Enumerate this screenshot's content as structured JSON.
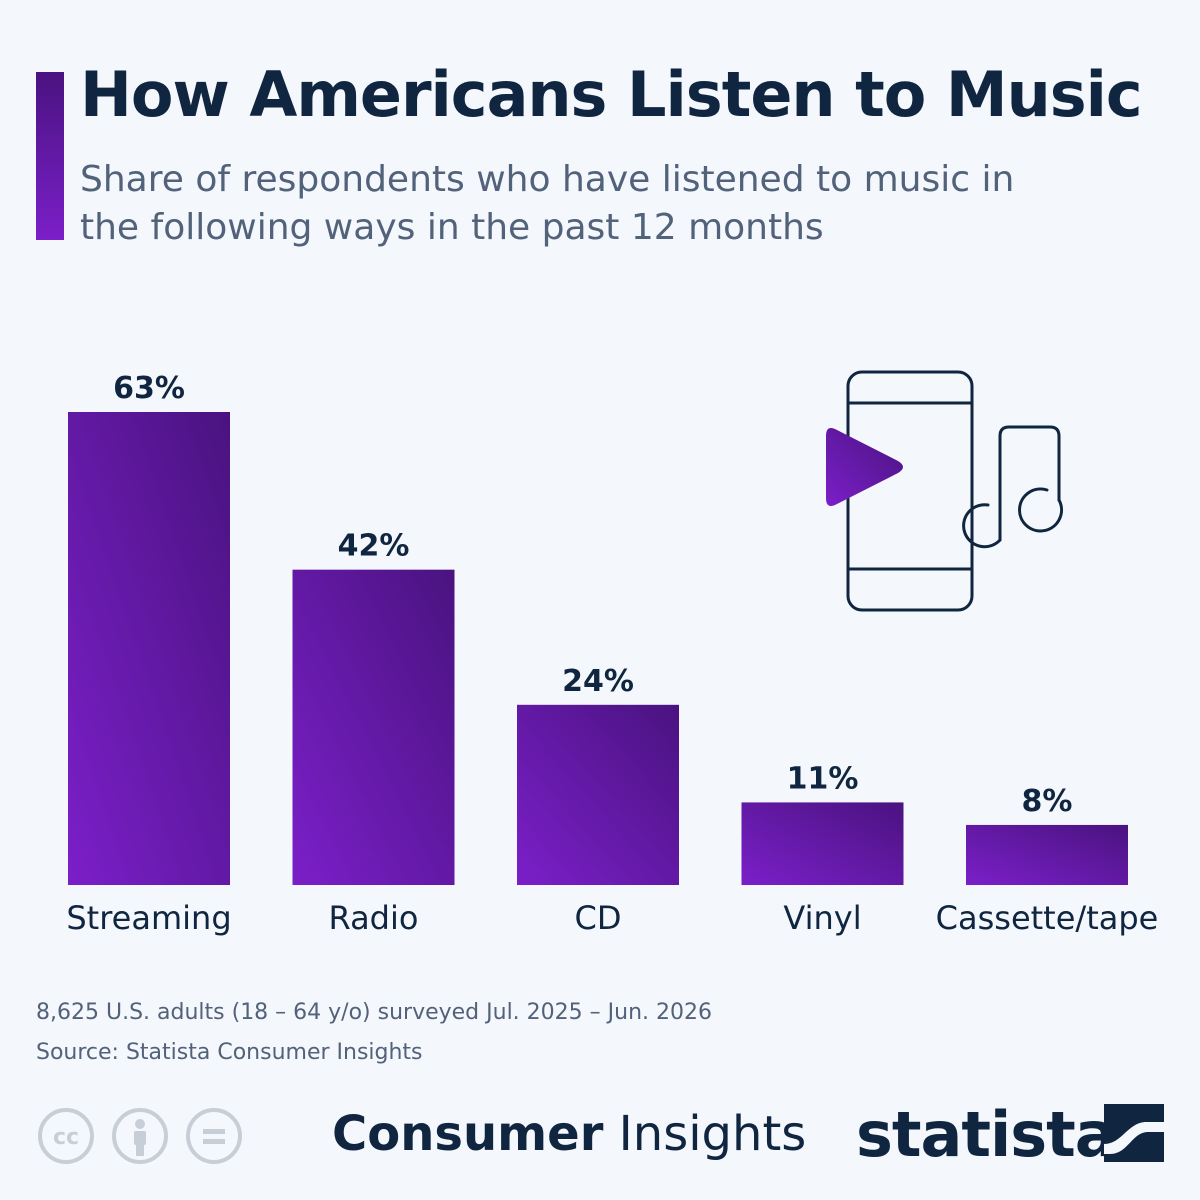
{
  "header": {
    "title": "How Americans Listen to Music",
    "subtitle": "Share of respondents who have listened to music in the following ways in the past 12 months"
  },
  "chart_data": {
    "type": "bar",
    "categories": [
      "Streaming",
      "Radio",
      "CD",
      "Vinyl",
      "Cassette/tape"
    ],
    "values": [
      63,
      42,
      24,
      11,
      8
    ],
    "value_labels": [
      "63%",
      "42%",
      "24%",
      "11%",
      "8%"
    ],
    "title": "How Americans Listen to Music",
    "subtitle": "Share of respondents who have listened to music in the following ways in the past 12 months",
    "xlabel": "",
    "ylabel": "",
    "unit": "%",
    "ylim": [
      0,
      63
    ],
    "grid": false,
    "legend": "none",
    "bar_color_start": "#7b1fc9",
    "bar_color_end": "#4a1380"
  },
  "footer": {
    "survey_note": "8,625 U.S. adults (18 – 64 y/o) surveyed Jul. 2025 – Jun. 2026",
    "source": "Source: Statista Consumer Insights",
    "brand_bold": "Consumer",
    "brand_light": "Insights",
    "logo_text": "statista"
  },
  "icons": {
    "illustration": "phone-music-icon",
    "license": [
      "cc-icon",
      "attribution-icon",
      "no-derivatives-icon"
    ]
  },
  "colors": {
    "background": "#f4f7fb",
    "text_dark": "#0f2540",
    "text_muted": "#52627a",
    "accent": "#7b1fc9",
    "license_gray": "#c8ced6"
  }
}
